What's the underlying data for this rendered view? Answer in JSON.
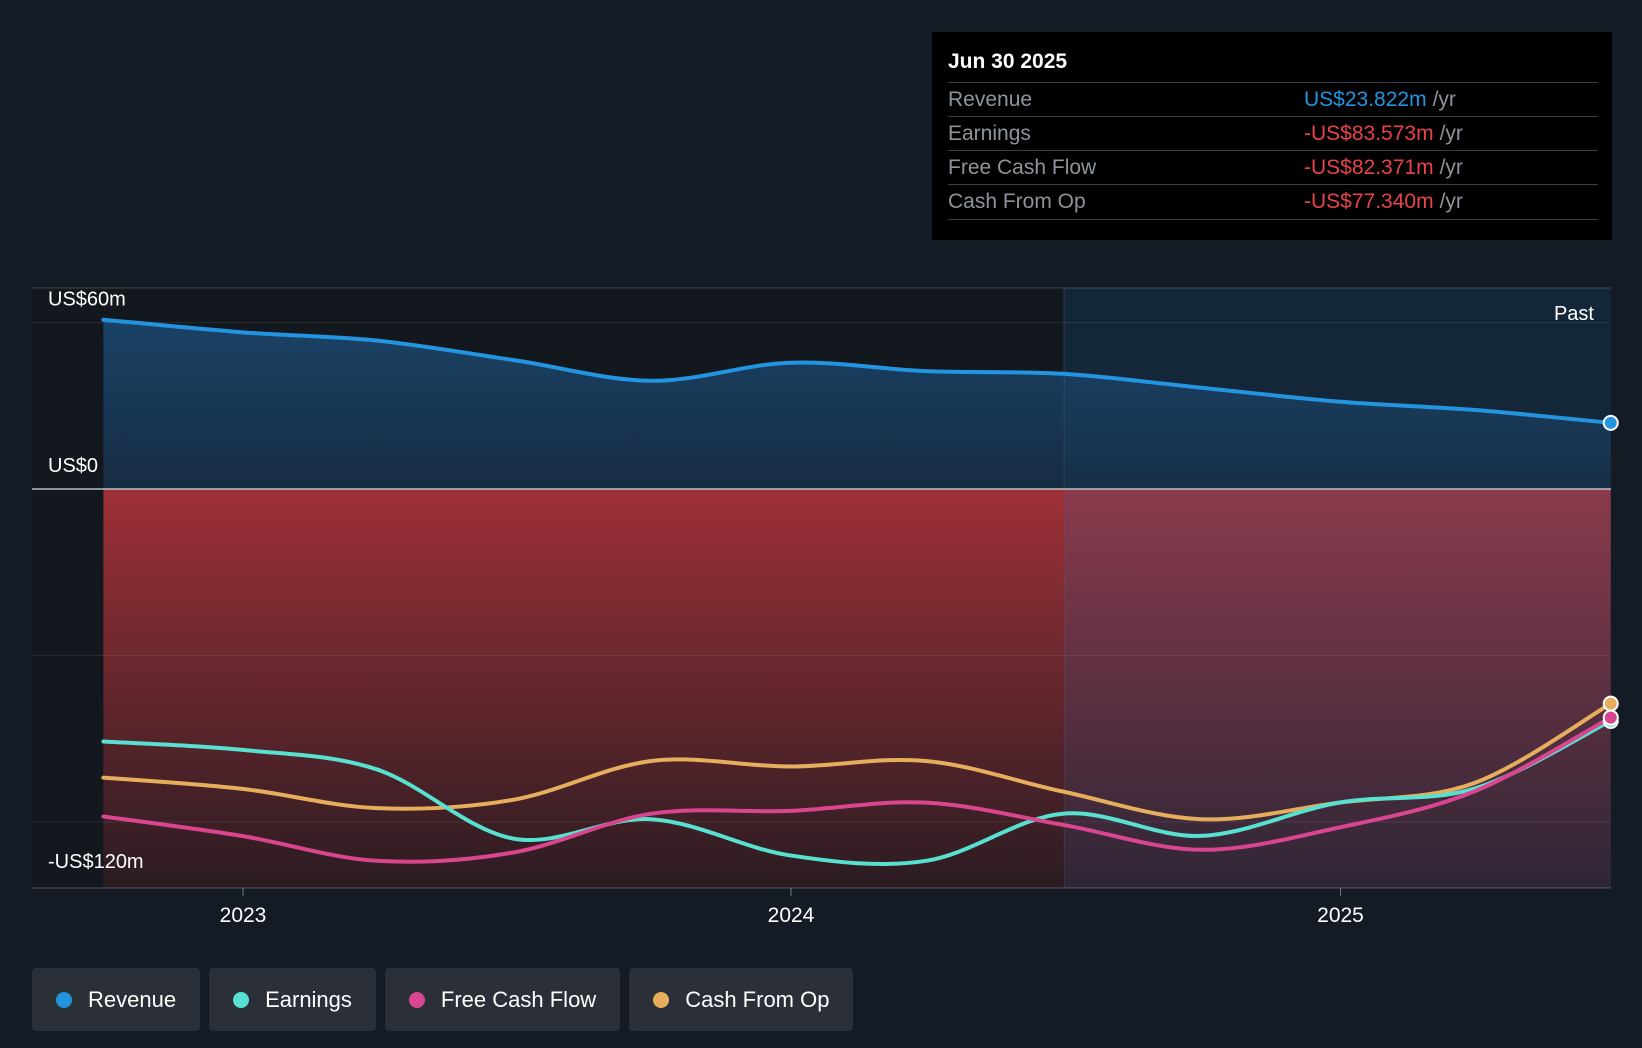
{
  "chart_data": {
    "type": "line",
    "x_ticks": [
      "2023",
      "2024",
      "2025"
    ],
    "y_axis": {
      "top_label": "US$60m",
      "zero_label": "US$0",
      "bottom_label": "-US$120m",
      "ylim": [
        -145,
        60
      ]
    },
    "past_label": "Past",
    "series": [
      {
        "name": "Revenue",
        "color": "#2394df",
        "values": [
          {
            "x": "2022-09-30",
            "y": 61
          },
          {
            "x": "2022-12-31",
            "y": 56.5
          },
          {
            "x": "2023-03-31",
            "y": 53.5
          },
          {
            "x": "2023-06-30",
            "y": 46.5
          },
          {
            "x": "2023-09-30",
            "y": 39
          },
          {
            "x": "2023-12-31",
            "y": 45.5
          },
          {
            "x": "2024-03-31",
            "y": 42.5
          },
          {
            "x": "2024-06-30",
            "y": 41.5
          },
          {
            "x": "2024-09-30",
            "y": 36.5
          },
          {
            "x": "2024-12-31",
            "y": 31.5
          },
          {
            "x": "2025-03-31",
            "y": 28.5
          },
          {
            "x": "2025-06-30",
            "y": 23.822
          }
        ]
      },
      {
        "name": "Earnings",
        "color": "#58e0d0",
        "values": [
          {
            "x": "2022-09-30",
            "y": -91
          },
          {
            "x": "2022-12-31",
            "y": -94
          },
          {
            "x": "2023-03-31",
            "y": -101
          },
          {
            "x": "2023-06-30",
            "y": -126
          },
          {
            "x": "2023-09-30",
            "y": -119
          },
          {
            "x": "2023-12-31",
            "y": -132
          },
          {
            "x": "2024-03-31",
            "y": -134
          },
          {
            "x": "2024-06-30",
            "y": -117
          },
          {
            "x": "2024-09-30",
            "y": -125
          },
          {
            "x": "2024-12-31",
            "y": -113
          },
          {
            "x": "2025-03-31",
            "y": -108
          },
          {
            "x": "2025-06-30",
            "y": -83.573
          }
        ]
      },
      {
        "name": "Free Cash Flow",
        "color": "#d9468f",
        "values": [
          {
            "x": "2022-09-30",
            "y": -118
          },
          {
            "x": "2022-12-31",
            "y": -125
          },
          {
            "x": "2023-03-31",
            "y": -134
          },
          {
            "x": "2023-06-30",
            "y": -131
          },
          {
            "x": "2023-09-30",
            "y": -117
          },
          {
            "x": "2023-12-31",
            "y": -116
          },
          {
            "x": "2024-03-31",
            "y": -113
          },
          {
            "x": "2024-06-30",
            "y": -121
          },
          {
            "x": "2024-09-30",
            "y": -130
          },
          {
            "x": "2024-12-31",
            "y": -122
          },
          {
            "x": "2025-03-31",
            "y": -109
          },
          {
            "x": "2025-06-30",
            "y": -82.371
          }
        ]
      },
      {
        "name": "Cash From Op",
        "color": "#e6ae5c",
        "values": [
          {
            "x": "2022-09-30",
            "y": -104
          },
          {
            "x": "2022-12-31",
            "y": -108
          },
          {
            "x": "2023-03-31",
            "y": -115
          },
          {
            "x": "2023-06-30",
            "y": -112
          },
          {
            "x": "2023-09-30",
            "y": -98
          },
          {
            "x": "2023-12-31",
            "y": -100
          },
          {
            "x": "2024-03-31",
            "y": -98
          },
          {
            "x": "2024-06-30",
            "y": -109
          },
          {
            "x": "2024-09-30",
            "y": -119
          },
          {
            "x": "2024-12-31",
            "y": -113
          },
          {
            "x": "2025-03-31",
            "y": -106
          },
          {
            "x": "2025-06-30",
            "y": -77.34
          }
        ]
      }
    ]
  },
  "tooltip": {
    "date": "Jun 30 2025",
    "rows": [
      {
        "label": "Revenue",
        "value": "US$23.822m",
        "unit": "/yr",
        "color": "#2394df"
      },
      {
        "label": "Earnings",
        "value": "-US$83.573m",
        "unit": "/yr",
        "color": "#e8434a"
      },
      {
        "label": "Free Cash Flow",
        "value": "-US$82.371m",
        "unit": "/yr",
        "color": "#e8434a"
      },
      {
        "label": "Cash From Op",
        "value": "-US$77.340m",
        "unit": "/yr",
        "color": "#e8434a"
      }
    ]
  },
  "legend": [
    {
      "label": "Revenue",
      "color": "#2394df"
    },
    {
      "label": "Earnings",
      "color": "#58e0d0"
    },
    {
      "label": "Free Cash Flow",
      "color": "#d9468f"
    },
    {
      "label": "Cash From Op",
      "color": "#e6ae5c"
    }
  ]
}
